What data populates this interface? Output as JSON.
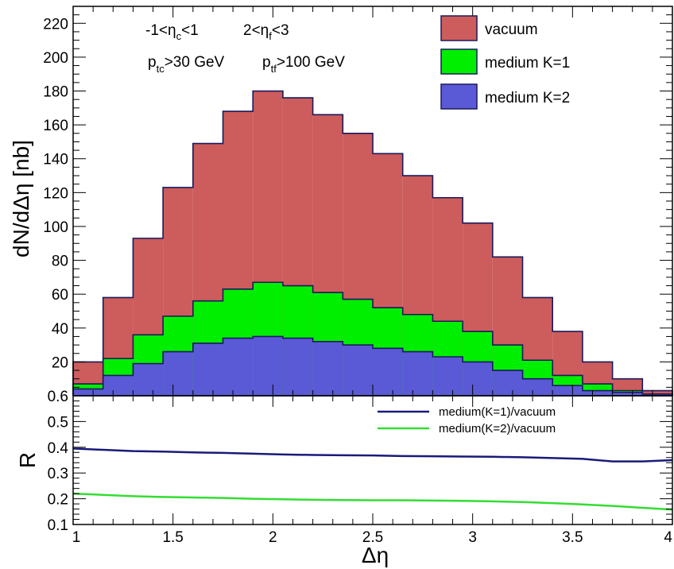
{
  "chart_data": [
    {
      "type": "bar",
      "panel": "top",
      "ylabel": "dN/dΔη [nb]",
      "xlim": [
        1,
        4
      ],
      "ylim": [
        0,
        230
      ],
      "yticks": [
        20,
        40,
        60,
        80,
        100,
        120,
        140,
        160,
        180,
        200,
        220
      ],
      "bin_edges": [
        1.0,
        1.15,
        1.3,
        1.45,
        1.6,
        1.75,
        1.9,
        2.05,
        2.2,
        2.35,
        2.5,
        2.65,
        2.8,
        2.95,
        3.1,
        3.25,
        3.4,
        3.55,
        3.7,
        3.85,
        4.0
      ],
      "series": [
        {
          "name": "vacuum",
          "color": "#cd5c5c",
          "values": [
            20,
            58,
            93,
            123,
            149,
            168,
            180,
            176,
            166,
            155,
            143,
            130,
            117,
            102,
            82,
            58,
            38,
            20,
            10,
            3
          ]
        },
        {
          "name": "medium K=1",
          "color": "#00ee00",
          "values": [
            7,
            22,
            36,
            47,
            56,
            63,
            67,
            65,
            61,
            57,
            52,
            48,
            44,
            38,
            30,
            21,
            12,
            7,
            3,
            1
          ]
        },
        {
          "name": "medium K=2",
          "color": "#5a5ad6",
          "values": [
            4,
            12,
            19,
            26,
            31,
            34,
            35,
            34,
            32,
            30,
            28,
            26,
            23,
            20,
            15,
            10,
            6,
            3,
            2,
            1
          ]
        }
      ],
      "annotations": [
        {
          "pre": "-1<η",
          "sub": "c",
          "post": "<1"
        },
        {
          "pre": "2<η",
          "sub": "f",
          "post": "<3"
        },
        {
          "pre": "p",
          "sub": "tc",
          "post": ">30 GeV"
        },
        {
          "pre": "p",
          "sub": "tf",
          "post": ">100 GeV"
        }
      ]
    },
    {
      "type": "line",
      "panel": "bottom",
      "xlabel": "Δη",
      "ylabel": "R",
      "xlim": [
        1,
        4
      ],
      "ylim": [
        0.1,
        0.6
      ],
      "xticks": [
        1,
        1.5,
        2,
        2.5,
        3,
        3.5,
        4
      ],
      "xtick_labels": [
        "1",
        "1.5",
        "2",
        "2.5",
        "3",
        "3.5",
        "4"
      ],
      "yticks": [
        0.1,
        0.2,
        0.3,
        0.4,
        0.5,
        0.6
      ],
      "ytick_labels": [
        "0.1",
        "0.2",
        "0.3",
        "0.4",
        "0.5",
        "0.6"
      ],
      "x": [
        1.0,
        1.15,
        1.3,
        1.45,
        1.6,
        1.75,
        1.9,
        2.05,
        2.2,
        2.35,
        2.5,
        2.65,
        2.8,
        2.95,
        3.1,
        3.25,
        3.4,
        3.55,
        3.7,
        3.85,
        4.0
      ],
      "series": [
        {
          "name": "medium(K=1)/vacuum",
          "color": "#1a1a7a",
          "values": [
            0.395,
            0.39,
            0.385,
            0.383,
            0.38,
            0.378,
            0.375,
            0.372,
            0.37,
            0.369,
            0.368,
            0.366,
            0.365,
            0.364,
            0.363,
            0.361,
            0.358,
            0.355,
            0.345,
            0.345,
            0.35
          ]
        },
        {
          "name": "medium(K=2)/vacuum",
          "color": "#33dd33",
          "values": [
            0.22,
            0.215,
            0.21,
            0.207,
            0.205,
            0.203,
            0.2,
            0.198,
            0.196,
            0.195,
            0.194,
            0.194,
            0.193,
            0.192,
            0.19,
            0.187,
            0.183,
            0.178,
            0.172,
            0.165,
            0.158
          ]
        }
      ]
    }
  ]
}
